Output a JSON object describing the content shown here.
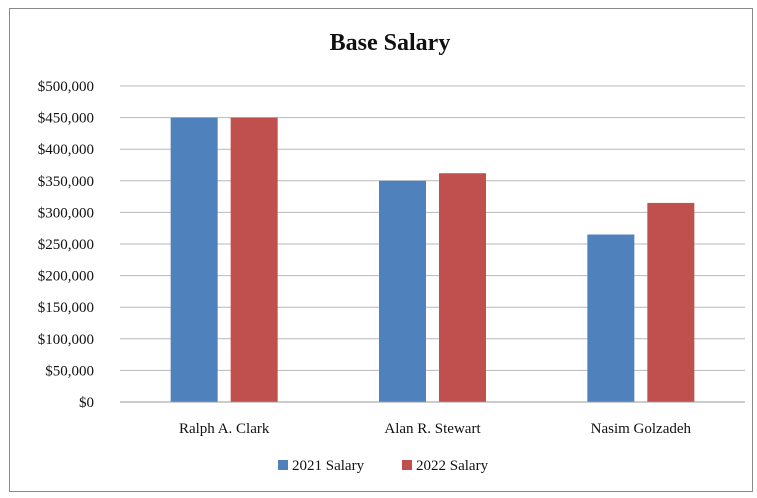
{
  "chart_data": {
    "type": "bar",
    "title": "Base Salary",
    "xlabel": "",
    "ylabel": "",
    "categories": [
      "Ralph A. Clark",
      "Alan R. Stewart",
      "Nasim Golzadeh"
    ],
    "series": [
      {
        "name": "2021 Salary",
        "values": [
          450000,
          350000,
          265000
        ],
        "color": "#4F81BD"
      },
      {
        "name": "2022 Salary",
        "values": [
          450000,
          362000,
          315000
        ],
        "color": "#C0504D"
      }
    ],
    "ylim": [
      0,
      500000
    ],
    "y_ticks": [
      "$0",
      "$50,000",
      "$100,000",
      "$150,000",
      "$200,000",
      "$250,000",
      "$300,000",
      "$350,000",
      "$400,000",
      "$450,000",
      "$500,000"
    ],
    "grid": true,
    "legend_position": "bottom"
  }
}
